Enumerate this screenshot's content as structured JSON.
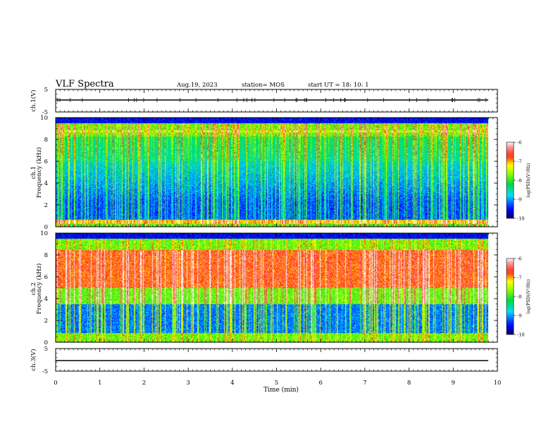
{
  "header": {
    "title": "VLF Spectra",
    "date": "Aug.19, 2023",
    "station": "station= MOS",
    "start": "start  UT =   18: 10: 1"
  },
  "chart_data": [
    {
      "id": "ch1v",
      "type": "line",
      "ylabel": "ch.1(V)",
      "ylim": [
        -5,
        5
      ],
      "yticks": [
        "5",
        "-5"
      ],
      "series": [
        {
          "values": [
            0,
            0
          ]
        }
      ]
    },
    {
      "id": "ch1",
      "type": "heatmap",
      "ylabel": "ch.1\nFrequency (kHz)",
      "ylim": [
        0,
        10
      ],
      "yticks": [
        "0",
        "2",
        "4",
        "6",
        "8",
        "10"
      ],
      "xlim": [
        0,
        10
      ],
      "colorbar": {
        "label": "log(PSD)(V²/Hz)",
        "range": [
          -10,
          -6
        ],
        "ticks": [
          "-6",
          "-7",
          "-8",
          "-9",
          "-10"
        ]
      }
    },
    {
      "id": "ch2",
      "type": "heatmap",
      "ylabel": "ch.2\nFrequency (kHz)",
      "ylim": [
        0,
        10
      ],
      "yticks": [
        "0",
        "2",
        "4",
        "6",
        "8",
        "10"
      ],
      "xlim": [
        0,
        10
      ],
      "colorbar": {
        "label": "log(PSD)(V²/Hz)",
        "range": [
          -10,
          -6
        ],
        "ticks": [
          "-6",
          "-7",
          "-8",
          "-9",
          "-10"
        ]
      }
    },
    {
      "id": "ch3v",
      "type": "line",
      "ylabel": "ch.3(V)",
      "ylim": [
        -5,
        5
      ],
      "yticks": [
        "5",
        "-5"
      ],
      "xlabel": "Time (min)",
      "xlim": [
        0,
        10
      ],
      "xticks": [
        "0",
        "1",
        "2",
        "3",
        "4",
        "5",
        "6",
        "7",
        "8",
        "9",
        "10"
      ],
      "series": [
        {
          "values": [
            -1,
            -1
          ]
        }
      ]
    }
  ]
}
